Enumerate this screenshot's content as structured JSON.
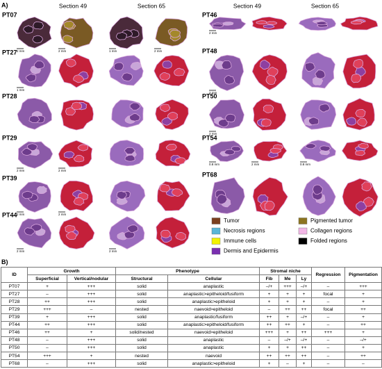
{
  "panel_a": {
    "label": "A)",
    "section_headers": [
      "Section 49",
      "Section 65",
      "Section 49",
      "Section 65"
    ],
    "samples": [
      {
        "id": "PT07",
        "scale_labels": [
          "2 mm",
          "2 mm",
          "1 mm",
          "2 mm"
        ]
      },
      {
        "id": "PT27",
        "scale_labels": [
          "1 mm",
          null,
          null,
          null
        ]
      },
      {
        "id": "PT28",
        "scale_labels": [
          null,
          null,
          null,
          null
        ]
      },
      {
        "id": "PT29",
        "scale_labels": [
          "2 mm",
          "2 mm",
          null,
          null
        ]
      },
      {
        "id": "PT39",
        "scale_labels": [
          "2 mm",
          "2 mm",
          null,
          null
        ]
      },
      {
        "id": "PT44",
        "scale_labels": [
          "2 mm",
          null,
          "2 mm",
          null
        ]
      },
      {
        "id": "PT46",
        "scale_labels": [
          "2 mm",
          null,
          null,
          null
        ]
      },
      {
        "id": "PT48",
        "scale_labels": [
          "2 mm",
          null,
          null,
          null
        ]
      },
      {
        "id": "PT50",
        "scale_labels": [
          "2 mm",
          null,
          null,
          null
        ]
      },
      {
        "id": "PT54",
        "scale_labels": [
          "0.8 mm",
          "2 mm",
          "0.8 mm",
          null
        ]
      },
      {
        "id": "PT68",
        "scale_labels": [
          null,
          null,
          null,
          null
        ]
      }
    ],
    "legend": [
      {
        "label": "Tumor",
        "color": "#7b3f1e"
      },
      {
        "label": "Necrosis regions",
        "color": "#5ab6d8"
      },
      {
        "label": "Immune cells",
        "color": "#f2f200"
      },
      {
        "label": "Dermis and Epidermis",
        "color": "#7a2fb0"
      },
      {
        "label": "Pigmented tumor",
        "color": "#8c7420"
      },
      {
        "label": "Collagen regions",
        "color": "#f2b6e6"
      },
      {
        "label": "Folded regions",
        "color": "#000000"
      }
    ]
  },
  "panel_b": {
    "label": "B)",
    "header_groups": [
      "ID",
      "Growth",
      "Phenotype",
      "Stromal niche",
      "Regression",
      "Pigmentation"
    ],
    "header_columns": [
      "Superficial",
      "Vertical/nodular",
      "Structural",
      "Cellular",
      "Fib",
      "Me",
      "Ly"
    ],
    "rows": [
      [
        "PT07",
        "+",
        "+++",
        "solid",
        "anaplastic",
        "–/+",
        "+++",
        "–/+",
        "–",
        "+++"
      ],
      [
        "PT27",
        "–",
        "+++",
        "solid",
        "anaplastic>epitheloid/fusiform",
        "+",
        "+",
        "+",
        "focal",
        "+"
      ],
      [
        "PT28",
        "++",
        "+++",
        "solid",
        "anaplastic>epitheloid",
        "+",
        "+",
        "+",
        "–",
        "+"
      ],
      [
        "PT29",
        "+++",
        "–",
        "nested",
        "naevoid>epitheloid",
        "–",
        "++",
        "++",
        "focal",
        "++"
      ],
      [
        "PT39",
        "+",
        "+++",
        "solid",
        "anaplastic/fusiform",
        "++",
        "+",
        "–/+",
        "–",
        "+"
      ],
      [
        "PT44",
        "++",
        "+++",
        "solid",
        "anaplastic>epitheloid/fusiform",
        "++",
        "++",
        "+",
        "–",
        "++"
      ],
      [
        "PT46",
        "++",
        "+",
        "solid/nested",
        "naevoid>epitheloid",
        "+++",
        "+",
        "++",
        "+++",
        "+"
      ],
      [
        "PT48",
        "–",
        "+++",
        "solid",
        "anaplastic",
        "–",
        "–/+",
        "–/+",
        "–",
        "–/+"
      ],
      [
        "PT50",
        "–",
        "+++",
        "solid",
        "anaplastic",
        "+",
        "+",
        "++",
        "–",
        "+"
      ],
      [
        "PT54",
        "+++",
        "+",
        "nested",
        "naevoid",
        "++",
        "++",
        "++",
        "–",
        "++"
      ],
      [
        "PT68",
        "–",
        "+++",
        "solid",
        "anaplastic>epitheloid",
        "+",
        "–",
        "+",
        "–",
        "–"
      ]
    ]
  }
}
